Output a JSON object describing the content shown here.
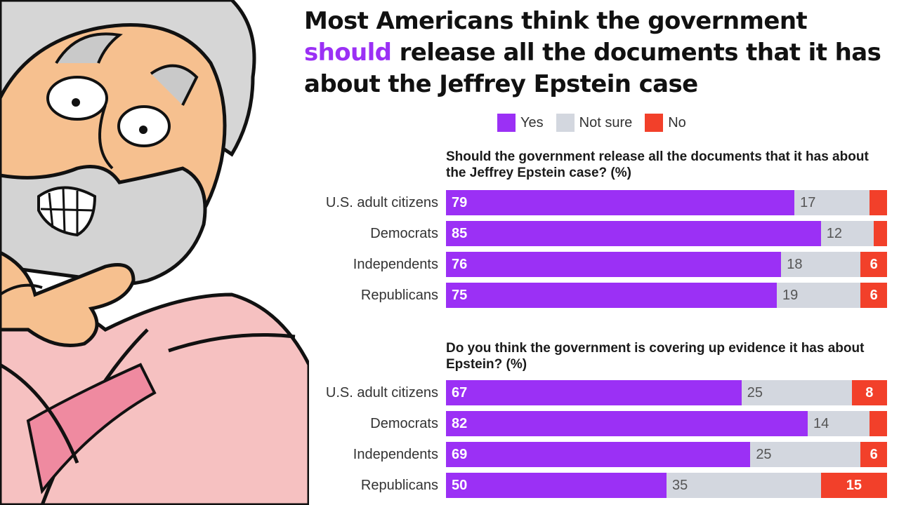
{
  "title": {
    "before": "Most Americans think the government",
    "highlight": "should",
    "after": " release all the documents that it has about the Jeffrey Epstein case"
  },
  "legend": [
    {
      "label": "Yes",
      "color": "#9b30f5"
    },
    {
      "label": "Not sure",
      "color": "#d3d7df"
    },
    {
      "label": "No",
      "color": "#f2402a"
    }
  ],
  "chart_data": [
    {
      "type": "bar",
      "orientation": "horizontal-stacked",
      "title": "Should the government release all the documents that it has about the Jeffrey Epstein case? (%)",
      "categories": [
        "U.S. adult citizens",
        "Democrats",
        "Independents",
        "Republicans"
      ],
      "series": [
        {
          "name": "Yes",
          "values": [
            79,
            85,
            76,
            75
          ],
          "labels": [
            "79",
            "85",
            "76",
            "75"
          ]
        },
        {
          "name": "Not sure",
          "values": [
            17,
            12,
            18,
            19
          ],
          "labels": [
            "17",
            "12",
            "18",
            "19"
          ]
        },
        {
          "name": "No",
          "values": [
            4,
            3,
            6,
            6
          ],
          "labels": [
            "",
            "",
            "6",
            "6"
          ]
        }
      ],
      "xlim": [
        0,
        100
      ]
    },
    {
      "type": "bar",
      "orientation": "horizontal-stacked",
      "title": "Do you think the government is covering up evidence it has about Epstein? (%)",
      "categories": [
        "U.S. adult citizens",
        "Democrats",
        "Independents",
        "Republicans"
      ],
      "series": [
        {
          "name": "Yes",
          "values": [
            67,
            82,
            69,
            50
          ],
          "labels": [
            "67",
            "82",
            "69",
            "50"
          ]
        },
        {
          "name": "Not sure",
          "values": [
            25,
            14,
            25,
            35
          ],
          "labels": [
            "25",
            "14",
            "25",
            "35"
          ]
        },
        {
          "name": "No",
          "values": [
            8,
            4,
            6,
            15
          ],
          "labels": [
            "8",
            "",
            "6",
            "15"
          ]
        }
      ],
      "xlim": [
        0,
        100
      ]
    }
  ]
}
